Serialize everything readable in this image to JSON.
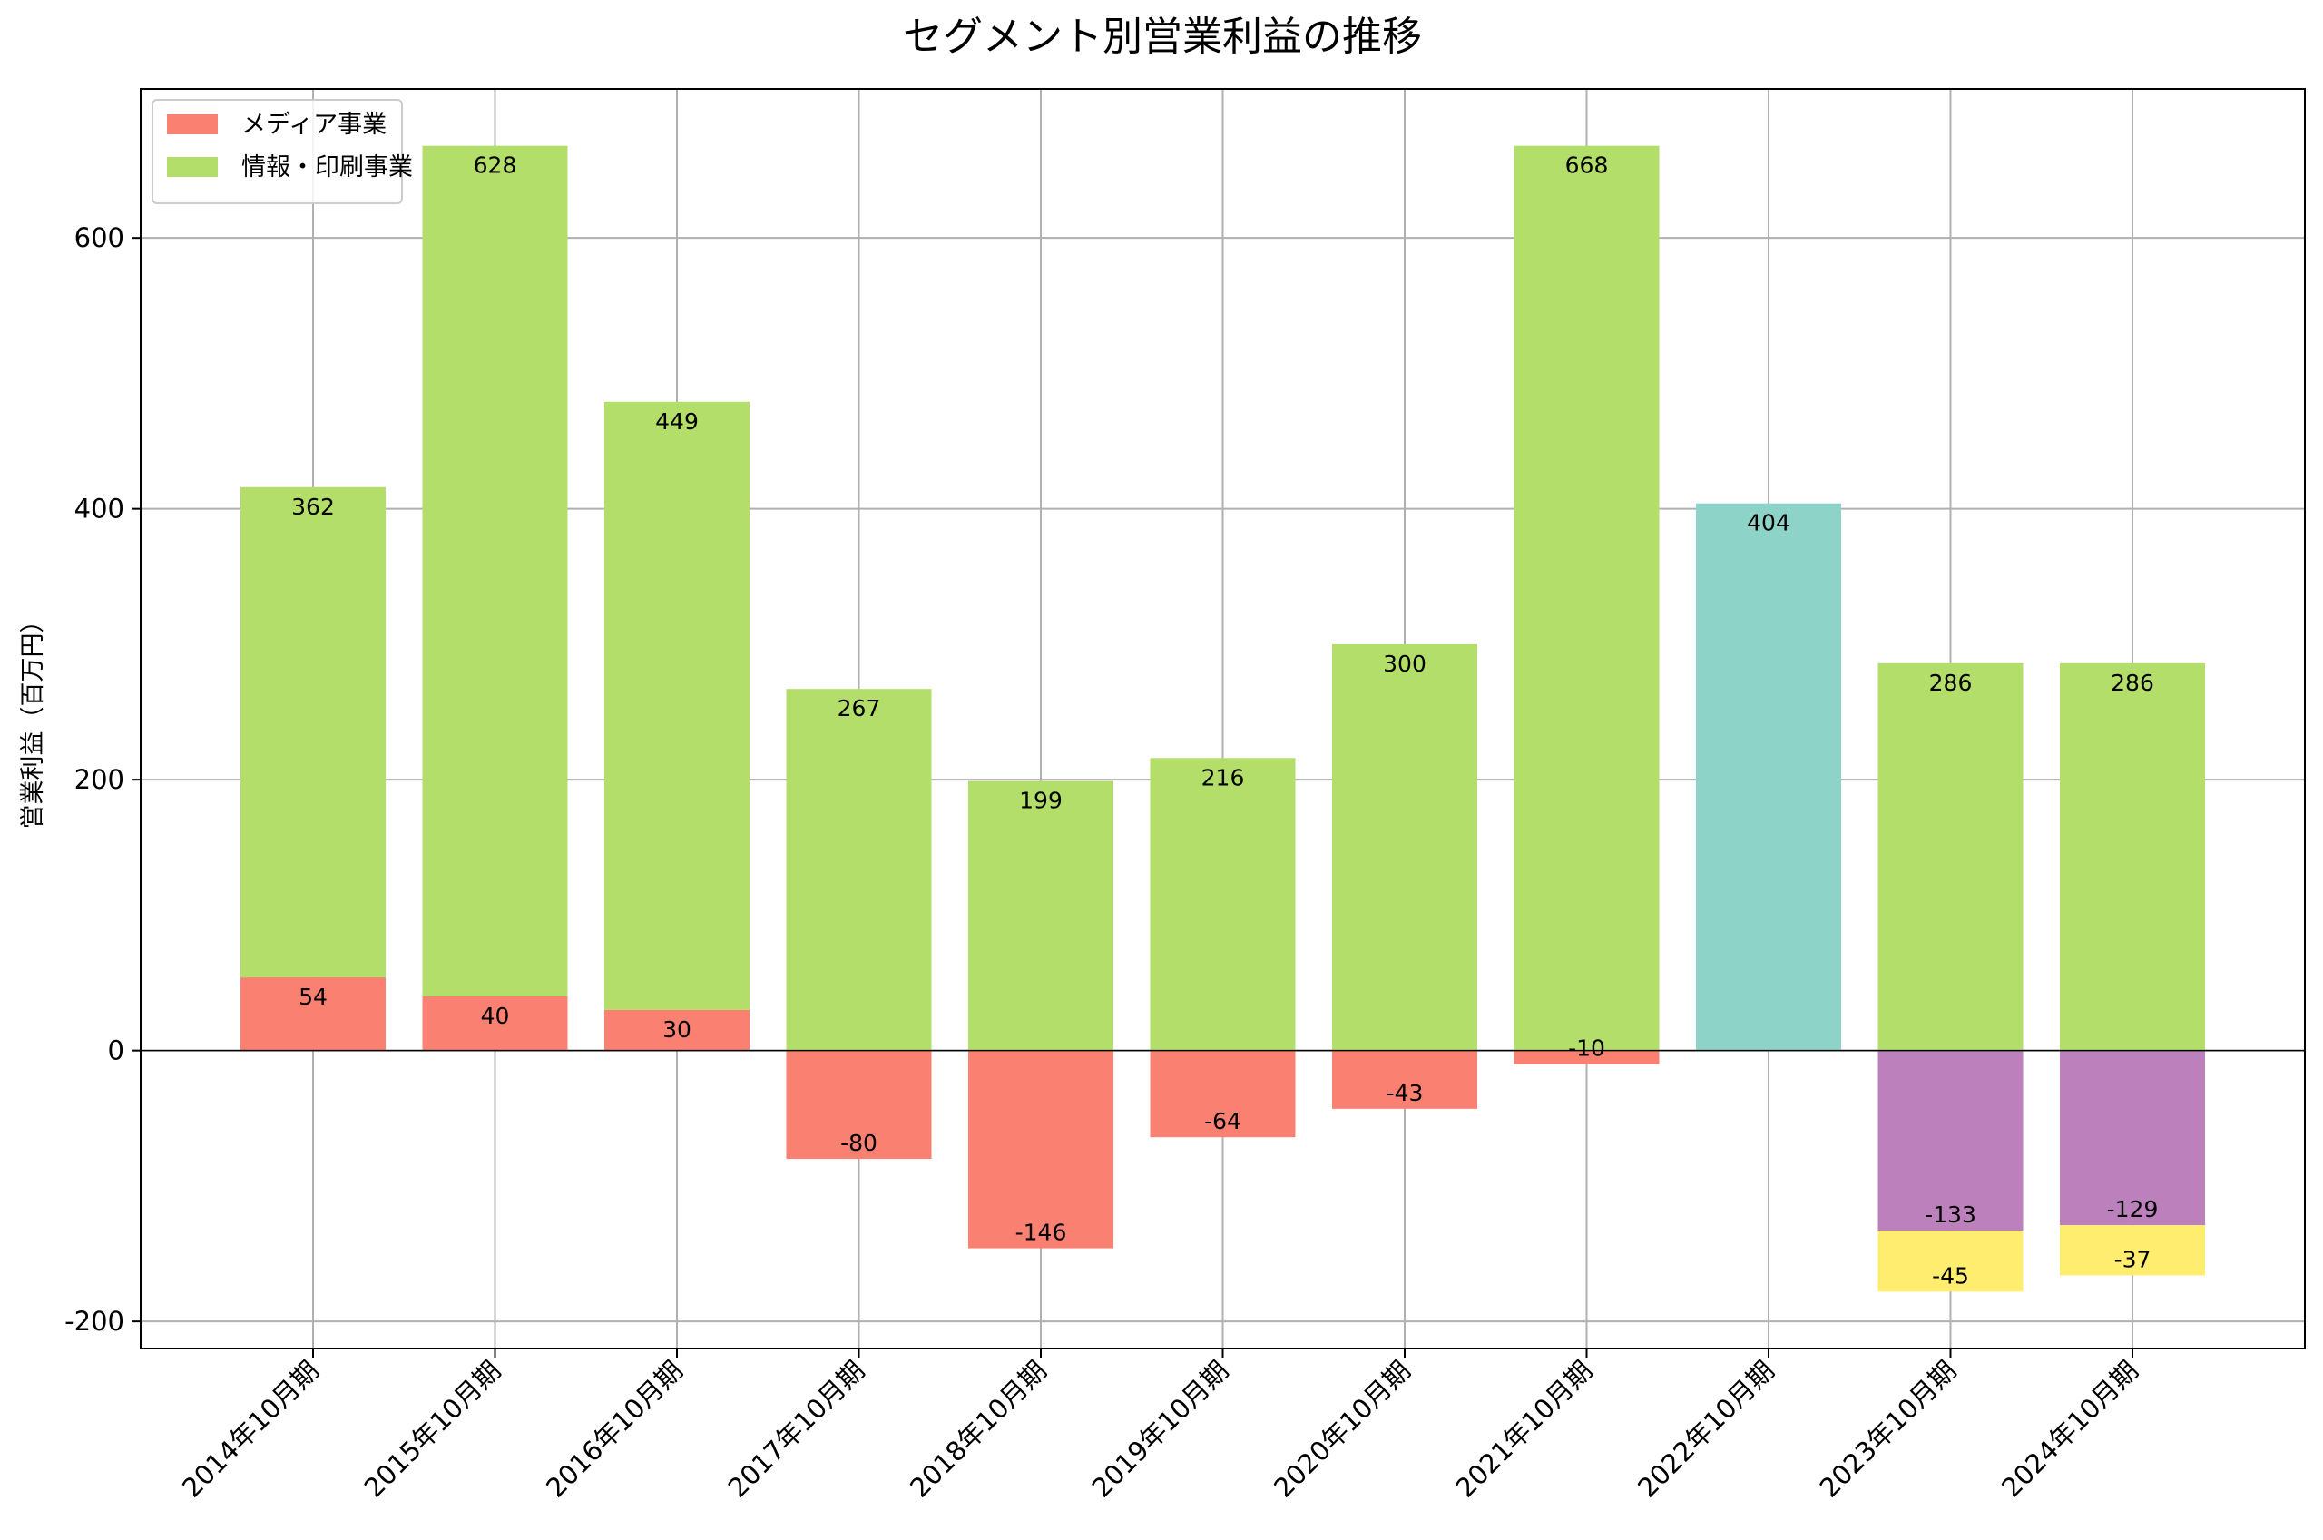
{
  "chart_data": {
    "type": "bar",
    "stacked": true,
    "title": "セグメント別営業利益の推移",
    "xlabel": "",
    "ylabel": "営業利益（百万円）",
    "ylim": [
      -220,
      710
    ],
    "yticks": [
      -200,
      0,
      200,
      400,
      600
    ],
    "grid": true,
    "legend_position": "top-left",
    "categories": [
      "2014年10月期",
      "2015年10月期",
      "2016年10月期",
      "2017年10月期",
      "2018年10月期",
      "2019年10月期",
      "2020年10月期",
      "2021年10月期",
      "2022年10月期",
      "2023年10月期",
      "2024年10月期"
    ],
    "series": [
      {
        "name": "メディア事業",
        "color": "#fa8072",
        "values": [
          54,
          40,
          30,
          -80,
          -146,
          -64,
          -43,
          -10,
          null,
          null,
          null
        ]
      },
      {
        "name": "情報・印刷事業",
        "color": "#b3de69",
        "values": [
          362,
          628,
          449,
          267,
          199,
          216,
          300,
          668,
          null,
          286,
          286
        ]
      },
      {
        "name": "",
        "color": "#8dd3c7",
        "values": [
          null,
          null,
          null,
          null,
          null,
          null,
          null,
          null,
          404,
          null,
          null
        ]
      },
      {
        "name": "",
        "color": "#bc80bd",
        "values": [
          null,
          null,
          null,
          null,
          null,
          null,
          null,
          null,
          null,
          -133,
          -129
        ]
      },
      {
        "name": "",
        "color": "#ffed6f",
        "values": [
          null,
          null,
          null,
          null,
          null,
          null,
          null,
          null,
          null,
          -45,
          -37
        ]
      }
    ]
  }
}
